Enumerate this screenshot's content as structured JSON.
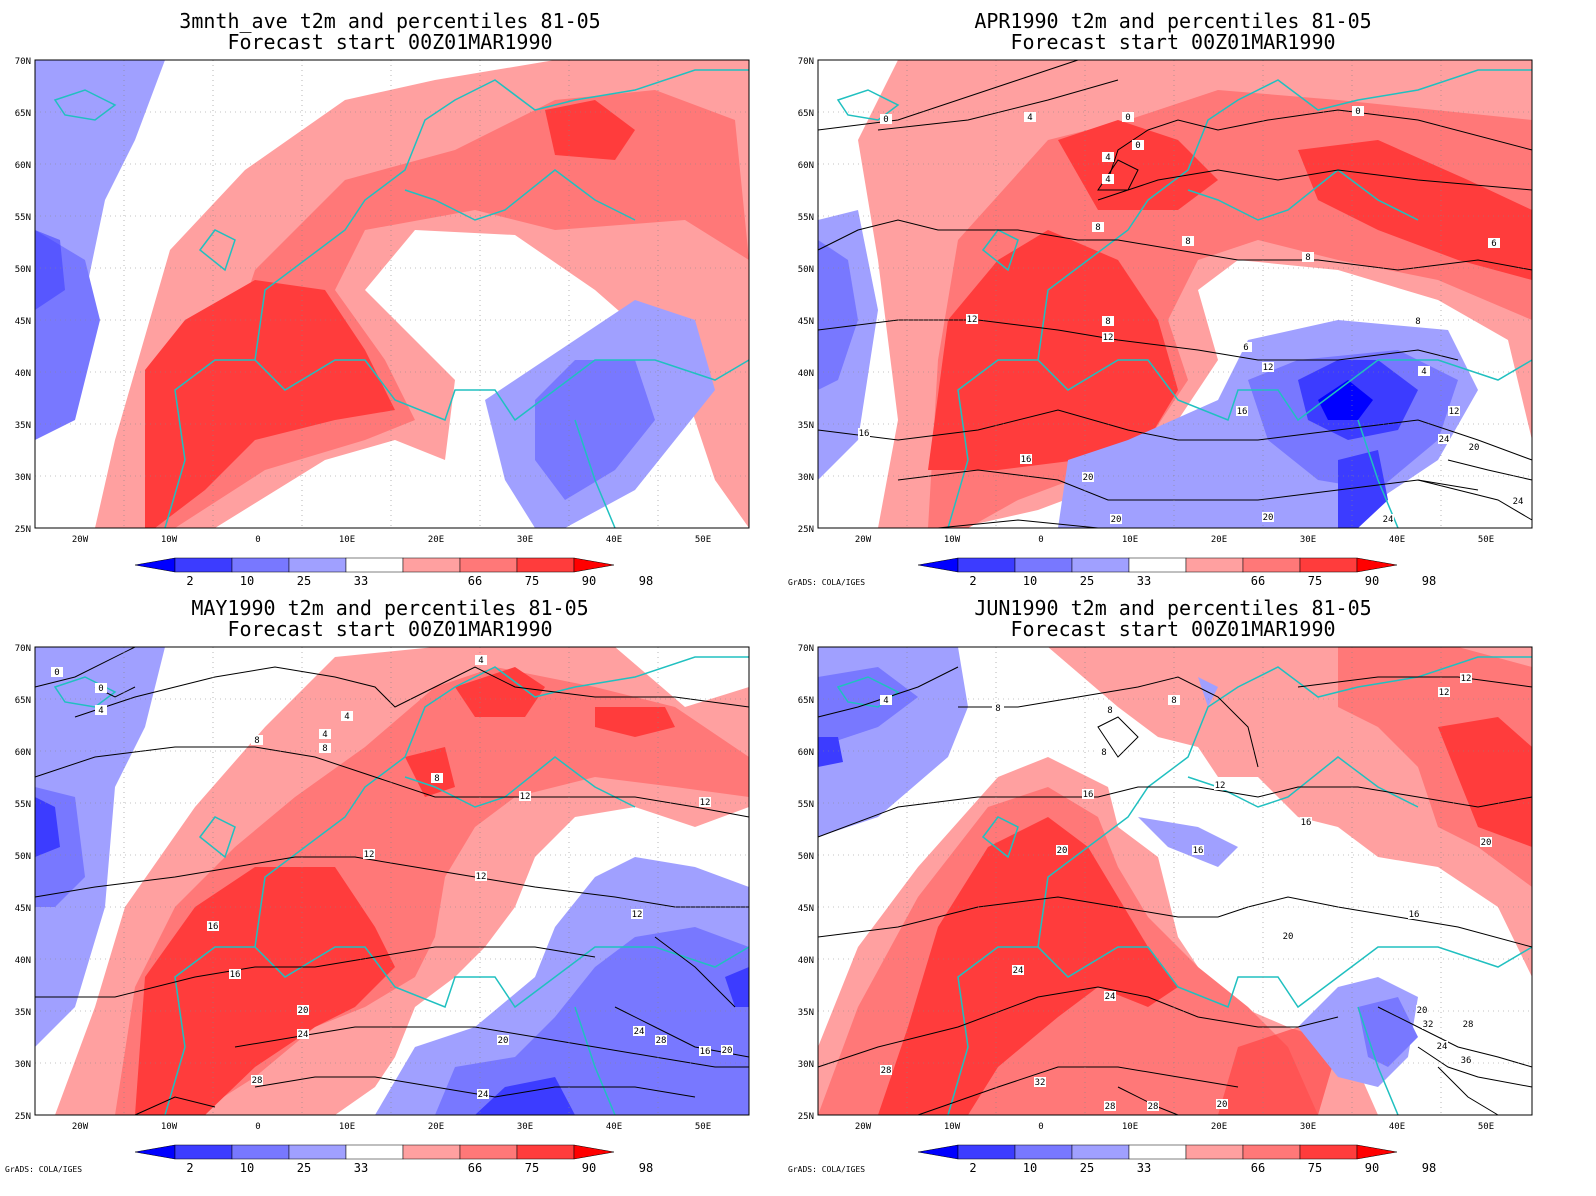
{
  "panels": [
    {
      "id": "p1",
      "title_line1": "3mnth_ave t2m and percentiles 81-05",
      "title_line2": "Forecast start 00Z01MAR1990",
      "has_contours": false,
      "contour_labels": [],
      "footer": ""
    },
    {
      "id": "p2",
      "title_line1": "APR1990 t2m and percentiles 81-05",
      "title_line2": "Forecast start 00Z01MAR1990",
      "has_contours": true,
      "contour_labels": [
        "0",
        "0",
        "4",
        "0",
        "4",
        "4",
        "0",
        "8",
        "8",
        "8",
        "6",
        "12",
        "8",
        "12",
        "6",
        "12",
        "8",
        "4",
        "16",
        "16",
        "12",
        "16",
        "20",
        "20",
        "20",
        "24",
        "24",
        "20",
        "24"
      ],
      "footer": "GrADS: COLA/IGES"
    },
    {
      "id": "p3",
      "title_line1": "MAY1990 t2m and percentiles 81-05",
      "title_line2": "Forecast start 00Z01MAR1990",
      "has_contours": true,
      "contour_labels": [
        "0",
        "0",
        "4",
        "4",
        "4",
        "8",
        "4",
        "8",
        "8",
        "12",
        "12",
        "12",
        "12",
        "12",
        "16",
        "16",
        "20",
        "20",
        "24",
        "24",
        "28",
        "16",
        "20",
        "28",
        "24"
      ],
      "footer": "GrADS: COLA/IGES"
    },
    {
      "id": "p4",
      "title_line1": "JUN1990 t2m and percentiles 81-05",
      "title_line2": "Forecast start 00Z01MAR1990",
      "has_contours": true,
      "contour_labels": [
        "4",
        "8",
        "8",
        "8",
        "12",
        "8",
        "12",
        "12",
        "16",
        "16",
        "16",
        "20",
        "16",
        "20",
        "20",
        "24",
        "20",
        "24",
        "28",
        "32",
        "28",
        "24",
        "36",
        "28",
        "32",
        "28",
        "20"
      ],
      "footer": "GrADS: COLA/IGES"
    }
  ],
  "axes": {
    "lat_labels": [
      "70N",
      "65N",
      "60N",
      "55N",
      "50N",
      "45N",
      "40N",
      "35N",
      "30N",
      "25N"
    ],
    "lon_labels": [
      "20W",
      "10W",
      "0",
      "10E",
      "20E",
      "30E",
      "40E",
      "50E"
    ]
  },
  "legend": {
    "labels": [
      "2",
      "10",
      "25",
      "33",
      "66",
      "75",
      "90",
      "98"
    ],
    "colors": [
      "#0000ff",
      "#3c3cff",
      "#7878ff",
      "#a0a0ff",
      "#ffffff",
      "#ffa0a0",
      "#ff7878",
      "#ff3c3c",
      "#ff0000"
    ]
  },
  "colors": {
    "coastline": "#20c0c0",
    "contour": "#000000",
    "blue_strong": "#3c3cff",
    "blue_mid": "#7878ff",
    "blue_light": "#a0a0ff",
    "red_light": "#ffa0a0",
    "red_mid": "#ff7878",
    "red_strong": "#ff3c3c"
  }
}
